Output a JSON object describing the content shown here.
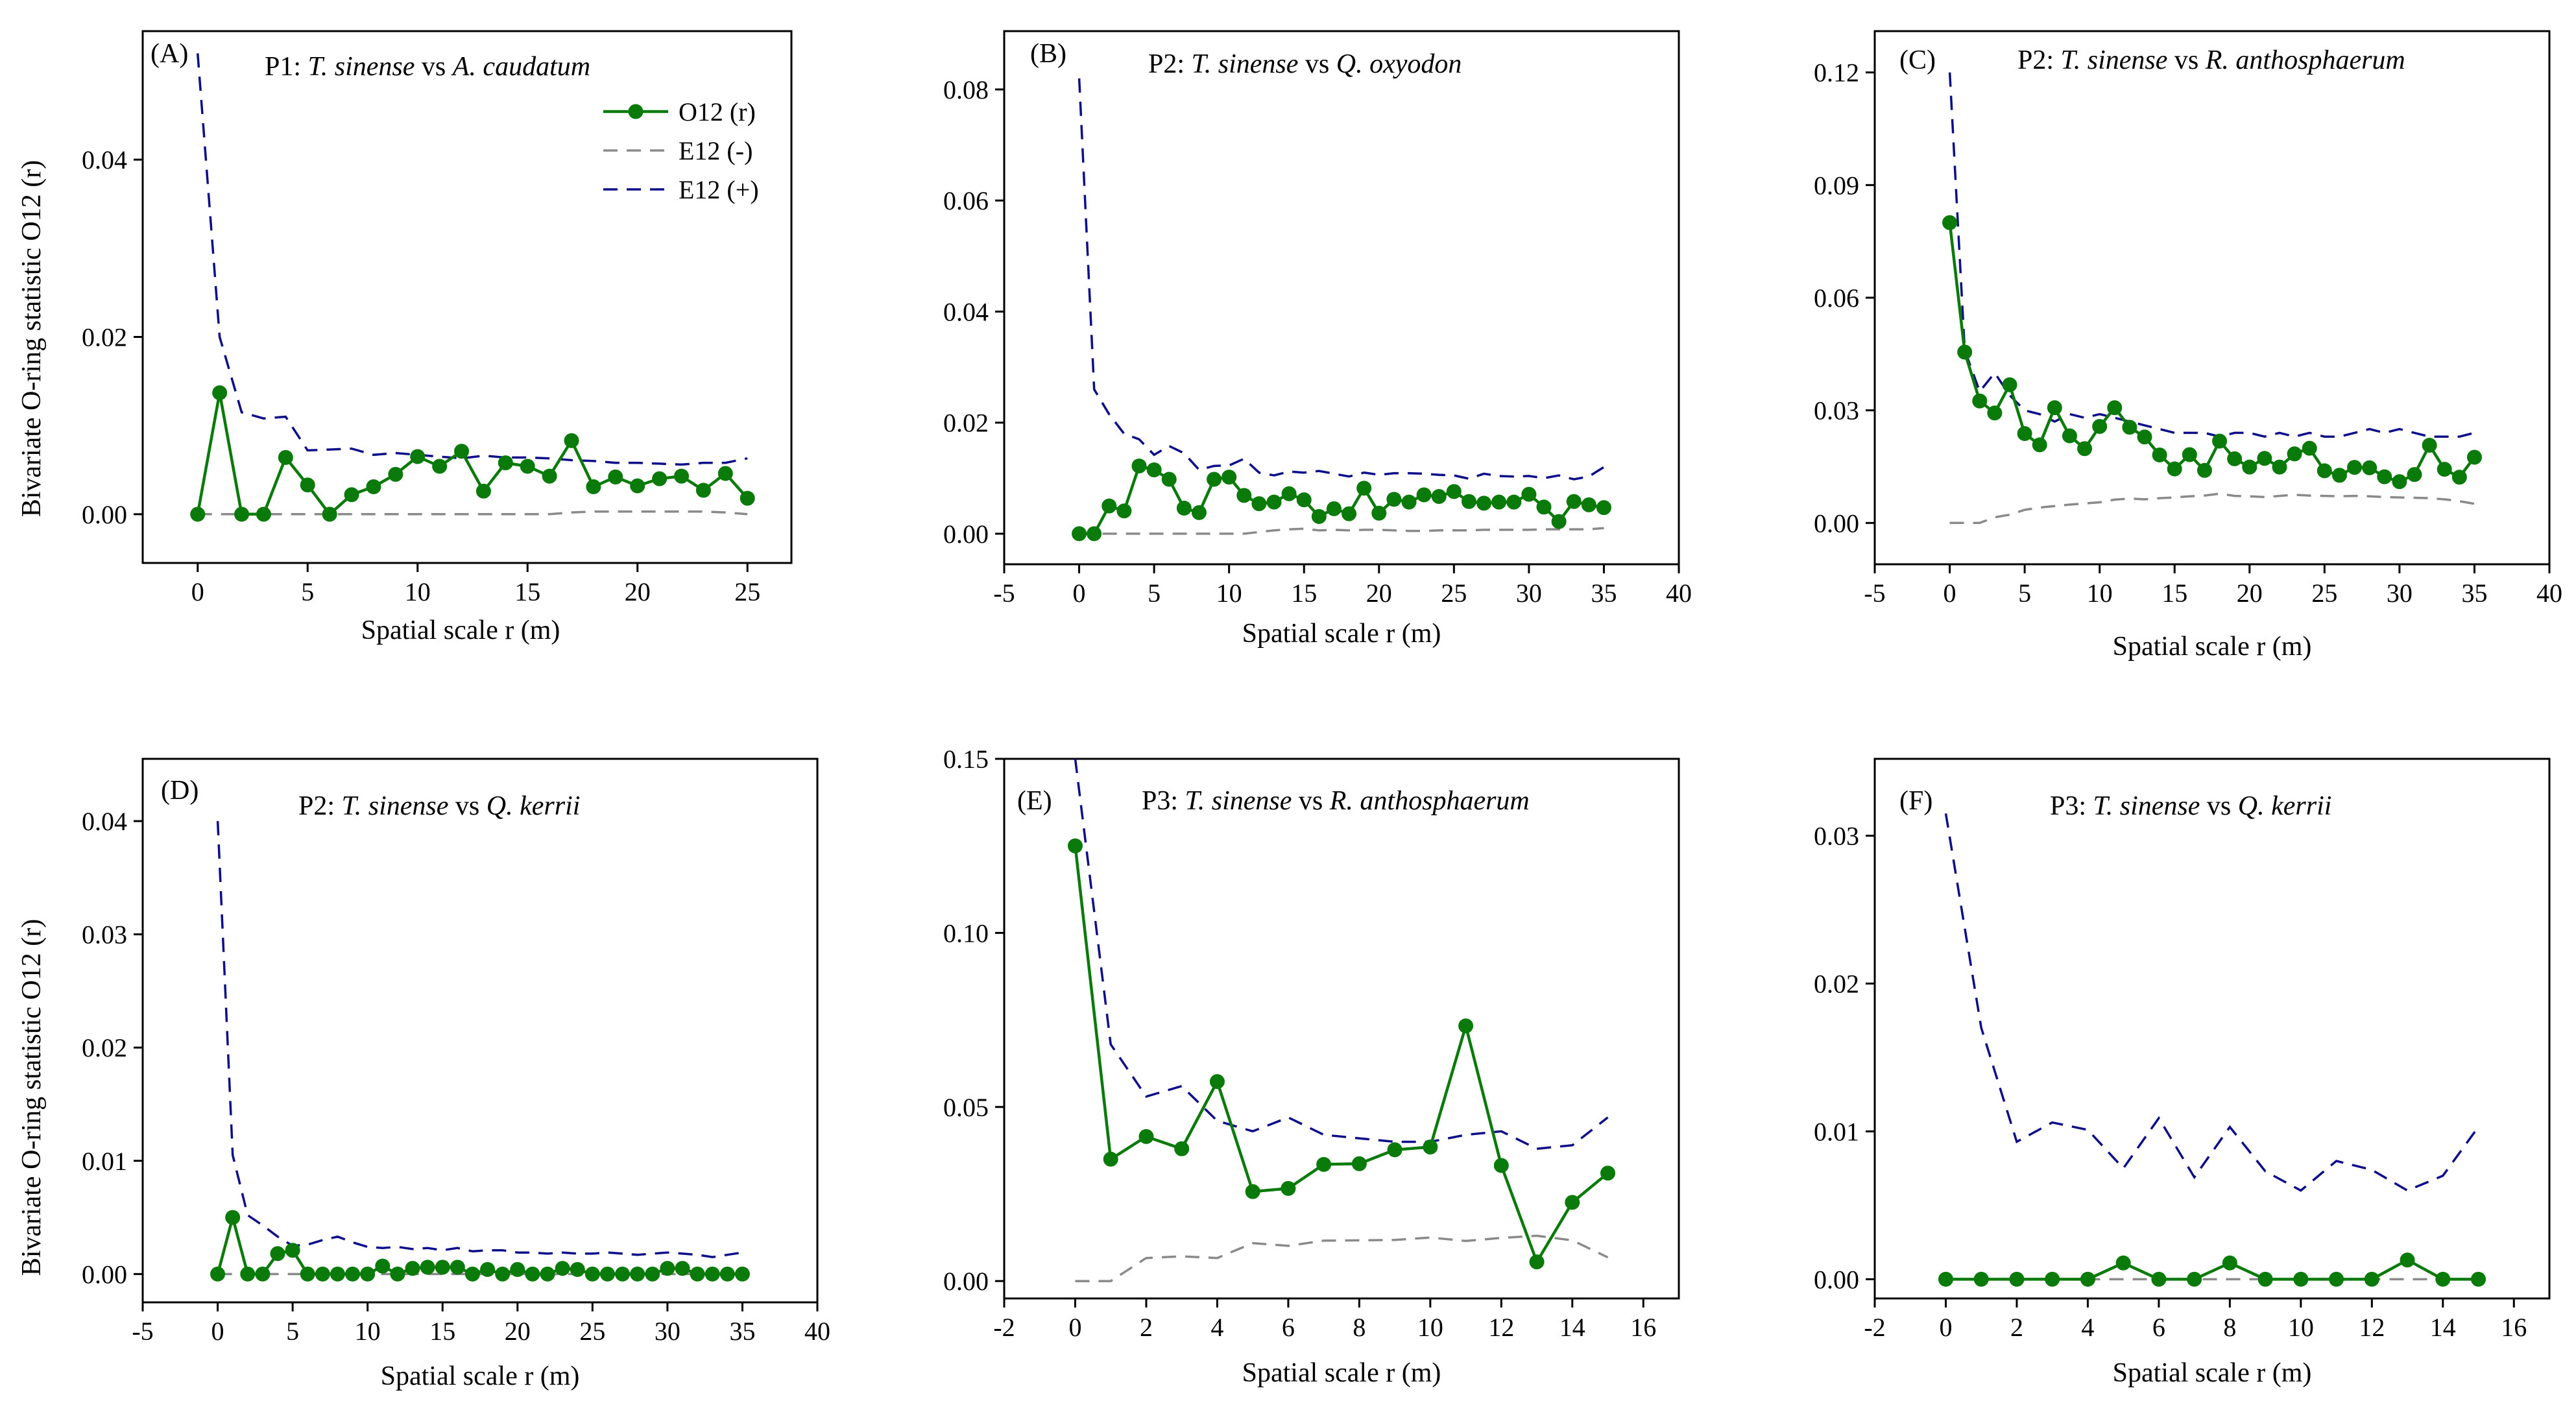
{
  "figure": {
    "ylabel": "Bivariate O-ring statistic O12 (r)",
    "legend": {
      "o12": "O12 (r)",
      "e_minus": "E12 (-)",
      "e_plus": "E12 (+)"
    },
    "colors": {
      "o12": "#0a7a0a",
      "e_minus": "#8a8a8a",
      "e_plus": "#0d0d8a"
    }
  },
  "chart_data": [
    {
      "id": "A",
      "letter": "(A)",
      "type": "line",
      "title_prefix": "P1: ",
      "title_sp1": "T. sinense",
      "title_vs": " vs ",
      "title_sp2": "A. caudatum",
      "xlabel": "Spatial scale r (m)",
      "xlim": [
        -2.5,
        27
      ],
      "ylim": [
        -0.0055,
        0.0545
      ],
      "xticks": [
        0,
        5,
        10,
        15,
        20,
        25
      ],
      "yticks": [
        0.0,
        0.02,
        0.04
      ],
      "ytick_labels": [
        "0.00",
        "0.02",
        "0.04"
      ],
      "show_legend": true,
      "x": [
        0,
        1,
        2,
        3,
        4,
        5,
        6,
        7,
        8,
        9,
        10,
        11,
        12,
        13,
        14,
        15,
        16,
        17,
        18,
        19,
        20,
        21,
        22,
        23,
        24,
        25
      ],
      "o12": [
        0.0,
        0.0137,
        0.0,
        0.0,
        0.0064,
        0.0033,
        0.0,
        0.0022,
        0.0031,
        0.0045,
        0.0065,
        0.0054,
        0.0071,
        0.0026,
        0.0058,
        0.0054,
        0.0043,
        0.0083,
        0.0031,
        0.0042,
        0.0032,
        0.004,
        0.0043,
        0.0027,
        0.0046,
        0.0018
      ],
      "e_minus": [
        0,
        0,
        0,
        0,
        0,
        0,
        0,
        0,
        0,
        0,
        0,
        0,
        0,
        0,
        0,
        0,
        0,
        0.0002,
        0.0003,
        0.0003,
        0.0003,
        0.0003,
        0.0003,
        0.0003,
        0.0002,
        0.0
      ],
      "e_plus": [
        0.052,
        0.02,
        0.0115,
        0.0108,
        0.011,
        0.0072,
        0.0073,
        0.0074,
        0.0067,
        0.0069,
        0.0067,
        0.0065,
        0.0063,
        0.0066,
        0.0064,
        0.0064,
        0.0063,
        0.0061,
        0.006,
        0.0058,
        0.0058,
        0.0057,
        0.0056,
        0.0058,
        0.0058,
        0.0063
      ]
    },
    {
      "id": "B",
      "letter": "(B)",
      "type": "line",
      "title_prefix": "P2: ",
      "title_sp1": "T. sinense",
      "title_vs": " vs ",
      "title_sp2": "Q. oxyodon",
      "xlabel": "Spatial scale r (m)",
      "xlim": [
        -5,
        40
      ],
      "ylim": [
        -0.0055,
        0.0905
      ],
      "xticks": [
        -5,
        0,
        5,
        10,
        15,
        20,
        25,
        30,
        35,
        40
      ],
      "yticks": [
        0.0,
        0.02,
        0.04,
        0.06,
        0.08
      ],
      "ytick_labels": [
        "0.00",
        "0.02",
        "0.04",
        "0.06",
        "0.08"
      ],
      "show_legend": false,
      "x": [
        0,
        1,
        2,
        3,
        4,
        5,
        6,
        7,
        8,
        9,
        10,
        11,
        12,
        13,
        14,
        15,
        16,
        17,
        18,
        19,
        20,
        21,
        22,
        23,
        24,
        25,
        26,
        27,
        28,
        29,
        30,
        31,
        32,
        33,
        34,
        35
      ],
      "o12": [
        0.0,
        0.0,
        0.005,
        0.0041,
        0.0122,
        0.0115,
        0.0098,
        0.0046,
        0.0038,
        0.0098,
        0.0102,
        0.0069,
        0.0054,
        0.0057,
        0.0072,
        0.0061,
        0.0031,
        0.0045,
        0.0036,
        0.0082,
        0.0037,
        0.0062,
        0.0057,
        0.007,
        0.0067,
        0.0076,
        0.0058,
        0.0055,
        0.0057,
        0.0057,
        0.0071,
        0.0048,
        0.0022,
        0.0058,
        0.0052,
        0.0047
      ],
      "e_minus": [
        0,
        0,
        0,
        0,
        0,
        0,
        0,
        0,
        0,
        0,
        0,
        0,
        0.0003,
        0.0006,
        0.0008,
        0.0009,
        0.0006,
        0.0007,
        0.0006,
        0.0007,
        0.0007,
        0.0006,
        0.0005,
        0.0005,
        0.0006,
        0.0006,
        0.0006,
        0.0007,
        0.0007,
        0.0007,
        0.0007,
        0.0008,
        0.0008,
        0.0008,
        0.0008,
        0.001
      ],
      "e_plus": [
        0.082,
        0.026,
        0.0215,
        0.018,
        0.017,
        0.0142,
        0.0158,
        0.0145,
        0.0115,
        0.0122,
        0.0123,
        0.0135,
        0.011,
        0.0105,
        0.0112,
        0.011,
        0.0113,
        0.0108,
        0.0103,
        0.011,
        0.0106,
        0.0109,
        0.0109,
        0.0108,
        0.0106,
        0.0105,
        0.0099,
        0.0108,
        0.0104,
        0.0103,
        0.0104,
        0.01,
        0.0105,
        0.0098,
        0.0103,
        0.012
      ]
    },
    {
      "id": "C",
      "letter": "(C)",
      "type": "line",
      "title_prefix": "P2: ",
      "title_sp1": "T. sinense",
      "title_vs": " vs ",
      "title_sp2": "R. anthosphaerum",
      "xlabel": "Spatial scale r (m)",
      "xlim": [
        -5,
        40
      ],
      "ylim": [
        -0.011,
        0.131
      ],
      "xticks": [
        -5,
        0,
        5,
        10,
        15,
        20,
        25,
        30,
        35,
        40
      ],
      "yticks": [
        0.0,
        0.03,
        0.06,
        0.09,
        0.12
      ],
      "ytick_labels": [
        "0.00",
        "0.03",
        "0.06",
        "0.09",
        "0.12"
      ],
      "show_legend": false,
      "x": [
        0,
        1,
        2,
        3,
        4,
        5,
        6,
        7,
        8,
        9,
        10,
        11,
        12,
        13,
        14,
        15,
        16,
        17,
        18,
        19,
        20,
        21,
        22,
        23,
        24,
        25,
        26,
        27,
        28,
        29,
        30,
        31,
        32,
        33,
        34,
        35
      ],
      "o12": [
        0.08,
        0.0455,
        0.0325,
        0.0293,
        0.0368,
        0.0238,
        0.0208,
        0.0307,
        0.0232,
        0.0198,
        0.0257,
        0.0307,
        0.0255,
        0.0229,
        0.0181,
        0.0144,
        0.0182,
        0.014,
        0.0218,
        0.0171,
        0.0149,
        0.0172,
        0.0149,
        0.0184,
        0.0199,
        0.0139,
        0.0127,
        0.0148,
        0.0147,
        0.0123,
        0.011,
        0.0129,
        0.0207,
        0.0143,
        0.0122,
        0.0175
      ],
      "e_minus": [
        0.0,
        0.0,
        0.0,
        0.0015,
        0.0022,
        0.0035,
        0.0041,
        0.0045,
        0.0049,
        0.0052,
        0.0055,
        0.0062,
        0.0065,
        0.0063,
        0.0066,
        0.0068,
        0.0071,
        0.0073,
        0.0078,
        0.0072,
        0.0071,
        0.0069,
        0.0072,
        0.0075,
        0.0073,
        0.0072,
        0.0071,
        0.0072,
        0.0071,
        0.0069,
        0.0068,
        0.0067,
        0.0066,
        0.0063,
        0.0058,
        0.0051
      ],
      "e_plus": [
        0.12,
        0.046,
        0.035,
        0.04,
        0.034,
        0.03,
        0.029,
        0.027,
        0.029,
        0.028,
        0.029,
        0.028,
        0.027,
        0.026,
        0.025,
        0.024,
        0.024,
        0.024,
        0.023,
        0.024,
        0.024,
        0.023,
        0.024,
        0.023,
        0.024,
        0.023,
        0.023,
        0.024,
        0.025,
        0.024,
        0.025,
        0.024,
        0.023,
        0.023,
        0.023,
        0.024
      ]
    },
    {
      "id": "D",
      "letter": "(D)",
      "type": "line",
      "title_prefix": "P2: ",
      "title_sp1": "T. sinense",
      "title_vs": " vs ",
      "title_sp2": "Q. kerrii",
      "xlabel": "Spatial scale r (m)",
      "xlim": [
        -5,
        40
      ],
      "ylim": [
        -0.0025,
        0.0455
      ],
      "xticks": [
        -5,
        0,
        5,
        10,
        15,
        20,
        25,
        30,
        35,
        40
      ],
      "yticks": [
        0.0,
        0.01,
        0.02,
        0.03,
        0.04
      ],
      "ytick_labels": [
        "0.00",
        "0.01",
        "0.02",
        "0.03",
        "0.04"
      ],
      "show_legend": false,
      "x": [
        0,
        1,
        2,
        3,
        4,
        5,
        6,
        7,
        8,
        9,
        10,
        11,
        12,
        13,
        14,
        15,
        16,
        17,
        18,
        19,
        20,
        21,
        22,
        23,
        24,
        25,
        26,
        27,
        28,
        29,
        30,
        31,
        32,
        33,
        34,
        35
      ],
      "o12": [
        0.0,
        0.005,
        0.0,
        0.0,
        0.0018,
        0.0021,
        0.0,
        0.0,
        0.0,
        0.0,
        0.0,
        0.0007,
        0.0,
        0.0005,
        0.0006,
        0.0006,
        0.0006,
        0.0,
        0.0004,
        0.0,
        0.0004,
        0.0,
        0.0,
        0.0005,
        0.0004,
        0.0,
        0.0,
        0.0,
        0.0,
        0.0,
        0.0005,
        0.0005,
        0.0,
        0.0,
        0.0,
        0.0
      ],
      "e_minus": [
        0,
        0,
        0,
        0,
        0,
        0,
        0,
        0,
        0,
        0,
        0,
        0,
        0,
        0,
        0,
        0,
        0,
        0,
        0,
        0,
        0,
        0,
        0,
        0,
        0,
        0,
        0,
        0,
        0,
        0,
        0,
        0,
        0,
        0,
        0,
        0
      ],
      "e_plus": [
        0.04,
        0.0105,
        0.0052,
        0.0043,
        0.0033,
        0.0025,
        0.0026,
        0.003,
        0.0033,
        0.0028,
        0.0024,
        0.0023,
        0.0024,
        0.0022,
        0.0023,
        0.0021,
        0.0023,
        0.002,
        0.0021,
        0.0021,
        0.0019,
        0.0019,
        0.0018,
        0.0019,
        0.0018,
        0.0018,
        0.0019,
        0.0018,
        0.0017,
        0.0018,
        0.0019,
        0.0018,
        0.0017,
        0.0015,
        0.0017,
        0.0019
      ]
    },
    {
      "id": "E",
      "letter": "(E)",
      "type": "line",
      "title_prefix": "P3: ",
      "title_sp1": "T. sinense",
      "title_vs": " vs ",
      "title_sp2": "R. anthosphaerum",
      "xlabel": "Spatial scale r (m)",
      "xlim": [
        -2,
        17
      ],
      "ylim": [
        -0.005,
        0.15
      ],
      "xticks": [
        -2,
        0,
        2,
        4,
        6,
        8,
        10,
        12,
        14,
        16
      ],
      "yticks": [
        0.0,
        0.05,
        0.1,
        0.15
      ],
      "ytick_labels": [
        "0.00",
        "0.05",
        "0.10",
        "0.15"
      ],
      "show_legend": false,
      "x": [
        0,
        1,
        2,
        3,
        4,
        5,
        6,
        7,
        8,
        9,
        10,
        11,
        12,
        13,
        14,
        15
      ],
      "o12": [
        0.125,
        0.035,
        0.0415,
        0.038,
        0.0573,
        0.0257,
        0.0266,
        0.0335,
        0.0337,
        0.0377,
        0.0385,
        0.0733,
        0.0332,
        0.0055,
        0.0226,
        0.031
      ],
      "e_minus": [
        0.0,
        0.0,
        0.0066,
        0.0071,
        0.0066,
        0.0109,
        0.0101,
        0.0116,
        0.0117,
        0.0118,
        0.0125,
        0.0115,
        0.0124,
        0.013,
        0.0117,
        0.0068
      ],
      "e_plus": [
        0.15,
        0.068,
        0.053,
        0.056,
        0.046,
        0.043,
        0.047,
        0.042,
        0.041,
        0.04,
        0.04,
        0.042,
        0.043,
        0.038,
        0.039,
        0.047
      ]
    },
    {
      "id": "F",
      "letter": "(F)",
      "type": "line",
      "title_prefix": "P3: ",
      "title_sp1": "T. sinense",
      "title_vs": " vs ",
      "title_sp2": "Q. kerrii",
      "xlabel": "Spatial scale r (m)",
      "xlim": [
        -2,
        17
      ],
      "ylim": [
        -0.0013,
        0.0352
      ],
      "xticks": [
        -2,
        0,
        2,
        4,
        6,
        8,
        10,
        12,
        14,
        16
      ],
      "yticks": [
        0.0,
        0.01,
        0.02,
        0.03
      ],
      "ytick_labels": [
        "0.00",
        "0.01",
        "0.02",
        "0.03"
      ],
      "show_legend": false,
      "x": [
        0,
        1,
        2,
        3,
        4,
        5,
        6,
        7,
        8,
        9,
        10,
        11,
        12,
        13,
        14,
        15
      ],
      "o12": [
        0.0,
        0.0,
        0.0,
        0.0,
        0.0,
        0.0011,
        0.0,
        0.0,
        0.0011,
        0.0,
        0.0,
        0.0,
        0.0,
        0.0013,
        0.0,
        0.0
      ],
      "e_minus": [
        0,
        0,
        0,
        0,
        0,
        0,
        0,
        0,
        0,
        0,
        0,
        0,
        0,
        0,
        0,
        0
      ],
      "e_plus": [
        0.0315,
        0.017,
        0.0093,
        0.0106,
        0.0101,
        0.0075,
        0.0109,
        0.0069,
        0.0103,
        0.0073,
        0.006,
        0.008,
        0.0074,
        0.006,
        0.007,
        0.0103
      ]
    }
  ]
}
